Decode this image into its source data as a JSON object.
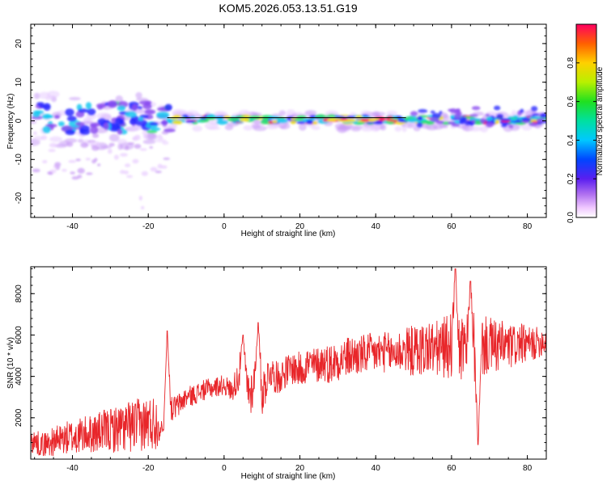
{
  "title": "KOM5.2026.053.13.51.G19",
  "colorbar": {
    "label": "Normalized spectral amplitude",
    "ticks": [
      "0.0",
      "0.2",
      "0.4",
      "0.6",
      "0.8"
    ],
    "tick_values": [
      0.0,
      0.2,
      0.4,
      0.6,
      0.8
    ],
    "range": [
      0,
      1
    ]
  },
  "chart_data": [
    {
      "type": "heatmap",
      "xlabel": "Height of straight line (km)",
      "ylabel": "Frequency (Hz)",
      "xlim": [
        -51,
        85
      ],
      "ylim": [
        -25,
        25
      ],
      "xticks": [
        "-40",
        "-20",
        "0",
        "20",
        "40",
        "60",
        "80"
      ],
      "xtick_values": [
        -40,
        -20,
        0,
        20,
        40,
        60,
        80
      ],
      "yticks": [
        "-20",
        "-10",
        "0",
        "10",
        "20"
      ],
      "ytick_values": [
        -20,
        -10,
        0,
        10,
        20
      ],
      "signal_band_hz": [
        -1,
        1
      ],
      "reference_line_y": 0.8,
      "reference_line_x": [
        -15,
        48
      ]
    },
    {
      "type": "line",
      "xlabel": "Height of straight line (km)",
      "ylabel": "SNR (10 * v/v)",
      "xlim": [
        -51,
        85
      ],
      "ylim": [
        0,
        9300
      ],
      "xticks": [
        "-40",
        "-20",
        "0",
        "20",
        "40",
        "60",
        "80"
      ],
      "xtick_values": [
        -40,
        -20,
        0,
        20,
        40,
        60,
        80
      ],
      "yticks": [
        "2000",
        "4000",
        "6000",
        "8000"
      ],
      "ytick_values": [
        2000,
        4000,
        6000,
        8000
      ],
      "color": "#e8262a",
      "x": [
        -51,
        -48,
        -45,
        -42,
        -39,
        -36,
        -33,
        -30,
        -27,
        -24,
        -21,
        -18,
        -16,
        -15,
        -14,
        -12,
        -10,
        -8,
        -6,
        -4,
        -2,
        0,
        2,
        4,
        5,
        6,
        7,
        8,
        9,
        10,
        12,
        14,
        16,
        18,
        20,
        22,
        24,
        26,
        28,
        30,
        32,
        34,
        36,
        38,
        40,
        42,
        44,
        46,
        48,
        50,
        52,
        54,
        56,
        58,
        60,
        61,
        62,
        64,
        65,
        66,
        67,
        68,
        70,
        72,
        74,
        76,
        78,
        80,
        82,
        84
      ],
      "y": [
        900,
        700,
        850,
        1000,
        1100,
        1200,
        1300,
        1400,
        1500,
        1600,
        1700,
        1800,
        1400,
        6200,
        2400,
        2600,
        3000,
        3100,
        3300,
        3400,
        3500,
        3600,
        3300,
        4100,
        6000,
        3600,
        3200,
        3800,
        6600,
        3100,
        4300,
        3900,
        4200,
        4400,
        4300,
        4600,
        4500,
        4700,
        4600,
        4800,
        4900,
        5000,
        5000,
        5100,
        5100,
        5200,
        5100,
        5200,
        5300,
        5200,
        5300,
        5400,
        5300,
        5400,
        5500,
        9200,
        5300,
        5200,
        8600,
        5300,
        700,
        5400,
        5500,
        5400,
        5500,
        5400,
        5600,
        5500,
        5600,
        5700
      ],
      "amplitude": [
        600,
        600,
        700,
        800,
        900,
        900,
        1000,
        1100,
        1200,
        1300,
        1300,
        1400,
        0,
        0,
        600,
        600,
        500,
        500,
        500,
        500,
        500,
        500,
        500,
        900,
        0,
        900,
        1200,
        900,
        0,
        1200,
        800,
        800,
        800,
        800,
        900,
        900,
        900,
        900,
        1000,
        1000,
        1000,
        1000,
        1000,
        1000,
        1000,
        1000,
        1000,
        1100,
        1100,
        1300,
        1300,
        1400,
        1400,
        1500,
        1600,
        0,
        1600,
        1600,
        0,
        1600,
        0,
        1500,
        1400,
        1300,
        1200,
        1100,
        1000,
        900,
        800,
        700
      ]
    }
  ]
}
